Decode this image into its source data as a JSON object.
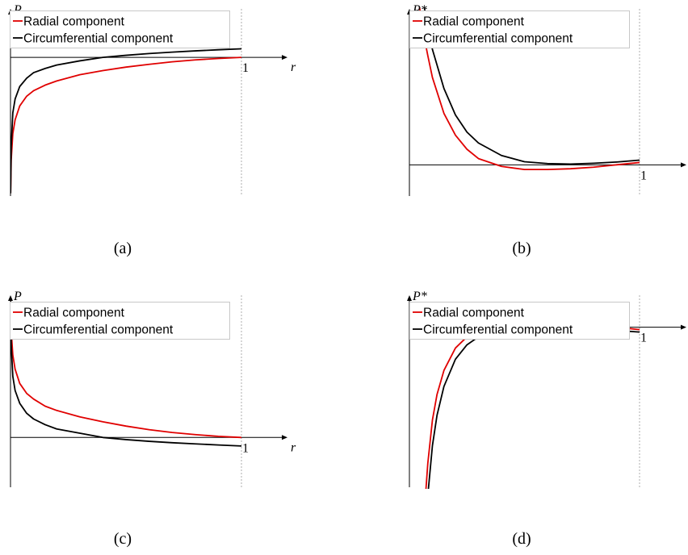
{
  "chart_data": [
    {
      "type": "line",
      "caption": "(a)",
      "ylabel": "P",
      "xlabel": "r",
      "x_tick_labels": [
        "1"
      ],
      "legend": {
        "placement": "top-right",
        "entries": [
          "Radial component",
          "Circumferential component"
        ]
      },
      "dashed_reference_x": 1,
      "xlim": [
        0,
        1.2
      ],
      "ylim": [
        -1,
        0.35
      ],
      "series": [
        {
          "name": "Radial component",
          "color": "#e00000",
          "x": [
            0.0005,
            0.003,
            0.01,
            0.02,
            0.04,
            0.07,
            0.1,
            0.15,
            0.2,
            0.3,
            0.4,
            0.5,
            0.6,
            0.7,
            0.8,
            0.9,
            1.0
          ],
          "y": [
            -0.98,
            -0.74,
            -0.55,
            -0.45,
            -0.35,
            -0.28,
            -0.24,
            -0.2,
            -0.17,
            -0.125,
            -0.095,
            -0.07,
            -0.05,
            -0.032,
            -0.018,
            -0.008,
            0.0
          ]
        },
        {
          "name": "Circumferential component",
          "color": "#000000",
          "x": [
            0.0005,
            0.003,
            0.01,
            0.02,
            0.04,
            0.07,
            0.1,
            0.15,
            0.2,
            0.3,
            0.4,
            0.5,
            0.6,
            0.7,
            0.8,
            0.9,
            1.0
          ],
          "y": [
            -0.98,
            -0.64,
            -0.4,
            -0.3,
            -0.21,
            -0.15,
            -0.11,
            -0.08,
            -0.055,
            -0.025,
            0.0,
            0.015,
            0.028,
            0.038,
            0.047,
            0.055,
            0.062
          ]
        }
      ]
    },
    {
      "type": "line",
      "caption": "(b)",
      "ylabel": "P*",
      "xlabel": "",
      "x_tick_labels": [
        "1"
      ],
      "legend": {
        "placement": "top-right",
        "entries": [
          "Radial component",
          "Circumferential component"
        ]
      },
      "dashed_reference_x": 1,
      "xlim": [
        0,
        1.2
      ],
      "ylim": [
        -0.2,
        1.0
      ],
      "series": [
        {
          "name": "Radial component",
          "color": "#e00000",
          "x": [
            0.04,
            0.06,
            0.08,
            0.1,
            0.15,
            0.2,
            0.25,
            0.3,
            0.4,
            0.5,
            0.6,
            0.7,
            0.8,
            0.9,
            1.0
          ],
          "y": [
            1.05,
            0.85,
            0.7,
            0.56,
            0.33,
            0.19,
            0.1,
            0.04,
            -0.01,
            -0.03,
            -0.03,
            -0.025,
            -0.015,
            0.0,
            0.015
          ]
        },
        {
          "name": "Circumferential component",
          "color": "#000000",
          "x": [
            0.06,
            0.08,
            0.1,
            0.15,
            0.2,
            0.25,
            0.3,
            0.4,
            0.5,
            0.6,
            0.7,
            0.8,
            0.9,
            1.0
          ],
          "y": [
            1.05,
            0.88,
            0.74,
            0.49,
            0.32,
            0.21,
            0.14,
            0.06,
            0.02,
            0.008,
            0.005,
            0.01,
            0.018,
            0.03
          ]
        }
      ]
    },
    {
      "type": "line",
      "caption": "(c)",
      "ylabel": "P",
      "xlabel": "r",
      "x_tick_labels": [
        "1"
      ],
      "legend": {
        "placement": "top-right",
        "entries": [
          "Radial component",
          "Circumferential component"
        ]
      },
      "dashed_reference_x": 1,
      "xlim": [
        0,
        1.2
      ],
      "ylim": [
        -0.35,
        1.0
      ],
      "series": [
        {
          "name": "Radial component",
          "color": "#e00000",
          "x": [
            0.0,
            0.003,
            0.01,
            0.02,
            0.04,
            0.07,
            0.1,
            0.15,
            0.2,
            0.3,
            0.4,
            0.5,
            0.6,
            0.7,
            0.8,
            0.9,
            1.0
          ],
          "y": [
            0.98,
            0.75,
            0.58,
            0.48,
            0.38,
            0.31,
            0.27,
            0.22,
            0.19,
            0.145,
            0.11,
            0.08,
            0.055,
            0.035,
            0.02,
            0.008,
            0.0
          ]
        },
        {
          "name": "Circumferential component",
          "color": "#000000",
          "x": [
            0.0,
            0.003,
            0.01,
            0.02,
            0.04,
            0.07,
            0.1,
            0.15,
            0.2,
            0.3,
            0.4,
            0.5,
            0.6,
            0.7,
            0.8,
            0.9,
            1.0
          ],
          "y": [
            0.98,
            0.65,
            0.43,
            0.33,
            0.24,
            0.17,
            0.13,
            0.09,
            0.06,
            0.03,
            0.0,
            -0.015,
            -0.027,
            -0.037,
            -0.045,
            -0.053,
            -0.06
          ]
        }
      ]
    },
    {
      "type": "line",
      "caption": "(d)",
      "ylabel": "P*",
      "xlabel": "",
      "x_tick_labels": [
        "1"
      ],
      "legend": {
        "placement": "top-right",
        "entries": [
          "Radial component",
          "Circumferential component"
        ]
      },
      "dashed_reference_x": 1,
      "xlim": [
        0,
        1.2
      ],
      "ylim": [
        -1.0,
        0.2
      ],
      "series": [
        {
          "name": "Radial component",
          "color": "#e00000",
          "x": [
            0.07,
            0.08,
            0.1,
            0.12,
            0.15,
            0.2,
            0.25,
            0.3,
            0.4,
            0.5,
            0.6,
            0.7,
            0.8,
            0.9,
            1.0
          ],
          "y": [
            -1.05,
            -0.85,
            -0.58,
            -0.42,
            -0.27,
            -0.13,
            -0.06,
            -0.02,
            0.015,
            0.025,
            0.025,
            0.02,
            0.01,
            0.0,
            -0.015
          ]
        },
        {
          "name": "Circumferential component",
          "color": "#000000",
          "x": [
            0.08,
            0.1,
            0.12,
            0.15,
            0.2,
            0.25,
            0.3,
            0.4,
            0.5,
            0.6,
            0.7,
            0.8,
            0.9,
            1.0
          ],
          "y": [
            -1.05,
            -0.74,
            -0.55,
            -0.37,
            -0.2,
            -0.11,
            -0.06,
            -0.015,
            0.0,
            0.005,
            0.0,
            -0.01,
            -0.02,
            -0.03
          ]
        }
      ]
    }
  ]
}
